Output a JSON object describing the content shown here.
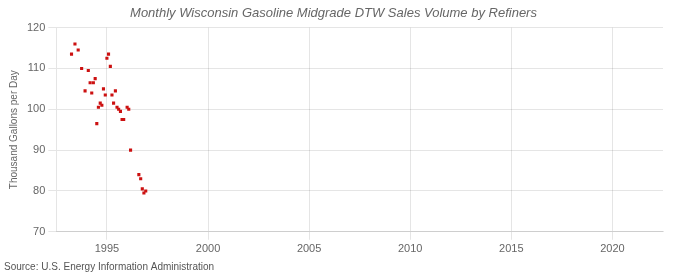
{
  "chart_data": {
    "type": "scatter",
    "title": "Monthly Wisconsin Gasoline Midgrade DTW Sales Volume by Refiners",
    "ylabel": "Thousand Gallons per Day",
    "annotations": [
      "Source: U.S. Energy Information Administration"
    ],
    "x": [
      1993.25,
      1993.42,
      1993.58,
      1993.75,
      1993.92,
      1994.08,
      1994.17,
      1994.25,
      1994.33,
      1994.42,
      1994.5,
      1994.58,
      1994.67,
      1994.75,
      1994.83,
      1994.92,
      1995.0,
      1995.08,
      1995.17,
      1995.25,
      1995.33,
      1995.42,
      1995.5,
      1995.58,
      1995.67,
      1995.75,
      1995.83,
      1996.0,
      1996.08,
      1996.17,
      1996.58,
      1996.67,
      1996.75,
      1996.83,
      1996.92
    ],
    "values": [
      113.5,
      116.0,
      114.5,
      110.0,
      104.5,
      109.5,
      106.5,
      104.0,
      106.5,
      107.5,
      96.5,
      100.5,
      101.5,
      101.0,
      105.0,
      103.5,
      112.5,
      113.5,
      110.5,
      103.5,
      101.5,
      104.5,
      100.5,
      100.0,
      99.5,
      97.5,
      97.5,
      100.5,
      100.0,
      90.0,
      84.0,
      83.0,
      80.5,
      79.5,
      80.0
    ],
    "color": "#cc1111",
    "marker": "square",
    "xlim": [
      1992.5,
      2022.5
    ],
    "ylim": [
      70,
      120
    ],
    "xticks": [
      1995,
      2000,
      2005,
      2010,
      2015,
      2020
    ],
    "yticks": [
      70,
      80,
      90,
      100,
      110,
      120
    ],
    "grid": true
  }
}
